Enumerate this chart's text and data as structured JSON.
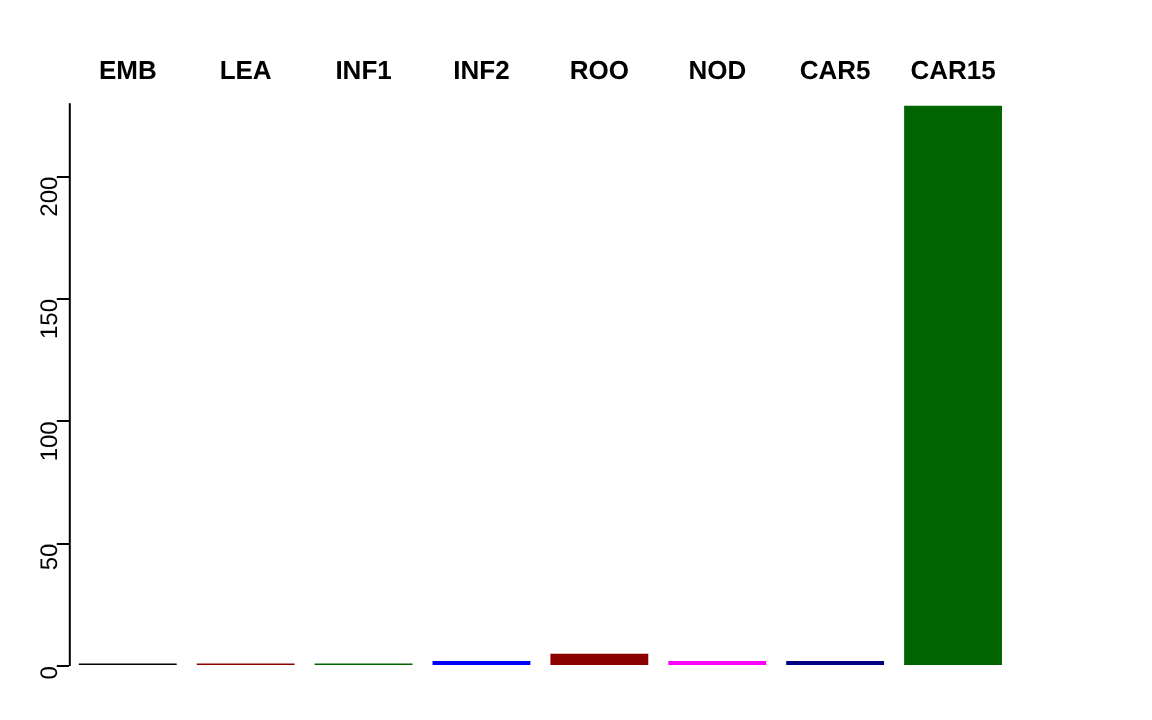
{
  "chart_data": {
    "type": "bar",
    "categories": [
      "EMB",
      "LEA",
      "INF1",
      "INF2",
      "ROO",
      "NOD",
      "CAR5",
      "CAR15"
    ],
    "values": [
      1,
      1,
      1,
      2,
      5,
      2,
      2,
      229
    ],
    "colors": [
      "#000000",
      "#8b0000",
      "#006400",
      "#0000ff",
      "#8b0000",
      "#ff00ff",
      "#000080",
      "#006400"
    ],
    "ylim": [
      0,
      230
    ],
    "yticks": [
      0,
      50,
      100,
      150,
      200
    ],
    "grid": false
  }
}
